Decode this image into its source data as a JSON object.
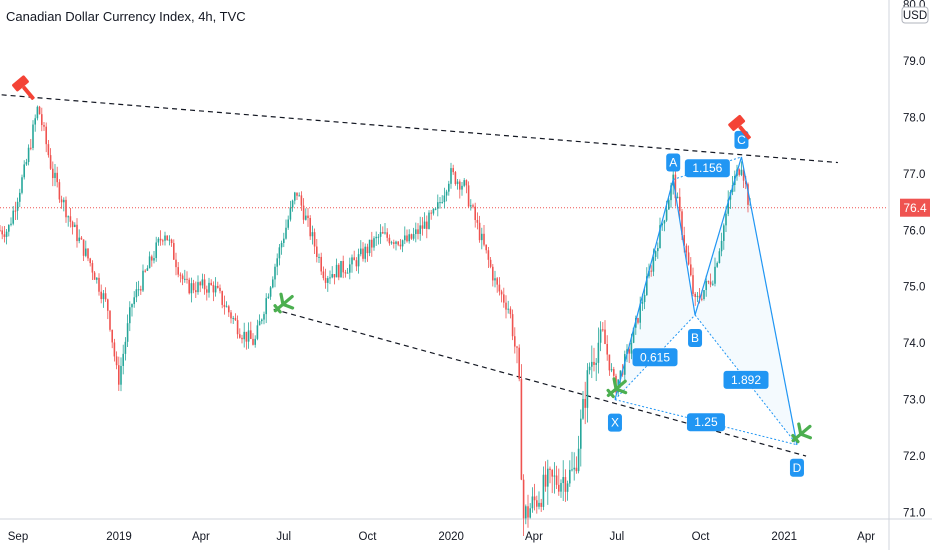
{
  "title": "Canadian Dollar Currency Index, 4h, TVC",
  "currency": "USD",
  "last_price_label": "76.4",
  "colors": {
    "up": "#26a69a",
    "down": "#ef5350",
    "pattern": "#2196f3",
    "trendline": "#131722",
    "current_price_line": "#ef5350",
    "sell_marker": "#f44336",
    "buy_marker": "#4caf50"
  },
  "chart_data": {
    "type": "candlestick",
    "title": "Canadian Dollar Currency Index, 4h, TVC",
    "x_ticks": [
      "Sep",
      "2019",
      "Apr",
      "Jul",
      "Oct",
      "2020",
      "Apr",
      "Jul",
      "Oct",
      "2021",
      "Apr"
    ],
    "y_ticks": [
      "80.0",
      "79.0",
      "78.0",
      "77.0",
      "76.0",
      "75.0",
      "74.0",
      "73.0",
      "72.0",
      "71.0"
    ],
    "ylim": [
      70.9,
      80.2
    ],
    "current_price": 76.4,
    "price_path": [
      [
        "2018-09-01",
        76.0
      ],
      [
        "2018-09-20",
        77.1
      ],
      [
        "2018-10-04",
        78.2
      ],
      [
        "2018-10-20",
        77.0
      ],
      [
        "2018-11-10",
        76.1
      ],
      [
        "2018-12-01",
        75.4
      ],
      [
        "2018-12-20",
        74.6
      ],
      [
        "2018-12-31",
        73.3
      ],
      [
        "2019-01-15",
        74.7
      ],
      [
        "2019-02-20",
        76.0
      ],
      [
        "2019-03-15",
        75.0
      ],
      [
        "2019-04-15",
        75.0
      ],
      [
        "2019-05-15",
        74.2
      ],
      [
        "2019-05-30",
        74.0
      ],
      [
        "2019-06-20",
        75.3
      ],
      [
        "2019-07-15",
        76.7
      ],
      [
        "2019-08-15",
        75.2
      ],
      [
        "2019-09-15",
        75.4
      ],
      [
        "2019-10-15",
        75.9
      ],
      [
        "2019-11-15",
        75.8
      ],
      [
        "2019-12-15",
        76.3
      ],
      [
        "2019-12-31",
        77.0
      ],
      [
        "2020-01-15",
        76.8
      ],
      [
        "2020-02-20",
        75.0
      ],
      [
        "2020-03-05",
        74.6
      ],
      [
        "2020-03-15",
        73.5
      ],
      [
        "2020-03-20",
        70.9
      ],
      [
        "2020-04-15",
        71.5
      ],
      [
        "2020-05-15",
        71.7
      ],
      [
        "2020-06-01",
        73.6
      ],
      [
        "2020-06-15",
        74.2
      ],
      [
        "2020-06-29",
        73.2
      ],
      [
        "2020-07-15",
        73.9
      ],
      [
        "2020-08-10",
        75.5
      ],
      [
        "2020-09-01",
        76.9
      ],
      [
        "2020-09-25",
        74.7
      ],
      [
        "2020-10-15",
        75.2
      ],
      [
        "2020-11-05",
        76.8
      ],
      [
        "2020-11-15",
        77.2
      ],
      [
        "2020-11-25",
        76.3
      ]
    ],
    "trendlines": [
      {
        "points": [
          [
            "2018-08-25",
            78.4
          ],
          [
            "2021-03-01",
            77.2
          ]
        ],
        "style": "dashed"
      },
      {
        "points": [
          [
            "2019-06-20",
            74.6
          ],
          [
            "2021-01-25",
            72.0
          ]
        ],
        "style": "dashed"
      }
    ],
    "harmonic_pattern": {
      "points": [
        {
          "label": "X",
          "date": "2020-06-29",
          "price": 73.0
        },
        {
          "label": "A",
          "date": "2020-09-01",
          "price": 76.9
        },
        {
          "label": "B",
          "date": "2020-09-25",
          "price": 74.5
        },
        {
          "label": "C",
          "date": "2020-11-15",
          "price": 77.3
        },
        {
          "label": "D",
          "date": "2021-01-15",
          "price": 72.2
        }
      ],
      "ratios": [
        {
          "value": "0.615",
          "legs": [
            "X",
            "B"
          ]
        },
        {
          "value": "1.156",
          "legs": [
            "A",
            "C"
          ]
        },
        {
          "value": "1.892",
          "legs": [
            "B",
            "D"
          ]
        },
        {
          "value": "1.25",
          "legs": [
            "X",
            "D"
          ]
        }
      ]
    },
    "markers": [
      {
        "type": "sell",
        "date": "2018-09-20",
        "price": 78.5
      },
      {
        "type": "sell",
        "date": "2020-11-15",
        "price": 77.8
      },
      {
        "type": "buy",
        "date": "2019-07-01",
        "price": 74.7
      },
      {
        "type": "buy",
        "date": "2020-07-01",
        "price": 73.2
      },
      {
        "type": "buy",
        "date": "2021-01-20",
        "price": 72.4
      }
    ],
    "grid": false
  }
}
